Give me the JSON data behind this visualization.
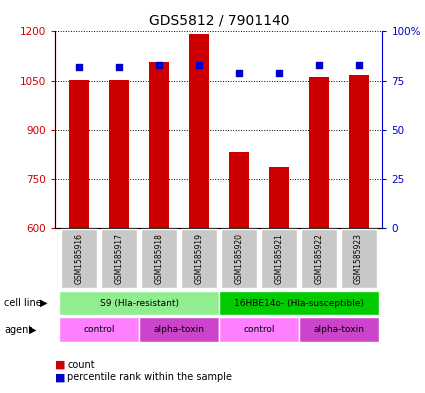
{
  "title": "GDS5812 / 7901140",
  "samples": [
    "GSM1585916",
    "GSM1585917",
    "GSM1585918",
    "GSM1585919",
    "GSM1585920",
    "GSM1585921",
    "GSM1585922",
    "GSM1585923"
  ],
  "counts": [
    1052,
    1052,
    1107,
    1193,
    832,
    785,
    1060,
    1068
  ],
  "percentiles": [
    82,
    82,
    83,
    83,
    79,
    79,
    83,
    83
  ],
  "ylim_left": [
    600,
    1200
  ],
  "ylim_right": [
    0,
    100
  ],
  "yticks_left": [
    600,
    750,
    900,
    1050,
    1200
  ],
  "yticks_right": [
    0,
    25,
    50,
    75,
    100
  ],
  "bar_color": "#cc0000",
  "dot_color": "#0000cc",
  "bar_width": 0.5,
  "cell_line_groups": [
    {
      "label": "S9 (Hla-resistant)",
      "start": 0,
      "end": 4,
      "color": "#90ee90"
    },
    {
      "label": "16HBE14o- (Hla-susceptible)",
      "start": 4,
      "end": 8,
      "color": "#00cc00"
    }
  ],
  "agent_groups": [
    {
      "label": "control",
      "start": 0,
      "end": 2,
      "color": "#ff80ff"
    },
    {
      "label": "alpha-toxin",
      "start": 2,
      "end": 4,
      "color": "#cc44cc"
    },
    {
      "label": "control",
      "start": 4,
      "end": 6,
      "color": "#ff80ff"
    },
    {
      "label": "alpha-toxin",
      "start": 6,
      "end": 8,
      "color": "#cc44cc"
    }
  ],
  "legend_count_color": "#cc0000",
  "legend_dot_color": "#0000cc",
  "label_cell_line": "cell line",
  "label_agent": "agent",
  "label_count": "count",
  "label_percentile": "percentile rank within the sample",
  "sample_box_color": "#c8c8c8",
  "left_axis_color": "#cc0000",
  "right_axis_color": "#0000cc"
}
